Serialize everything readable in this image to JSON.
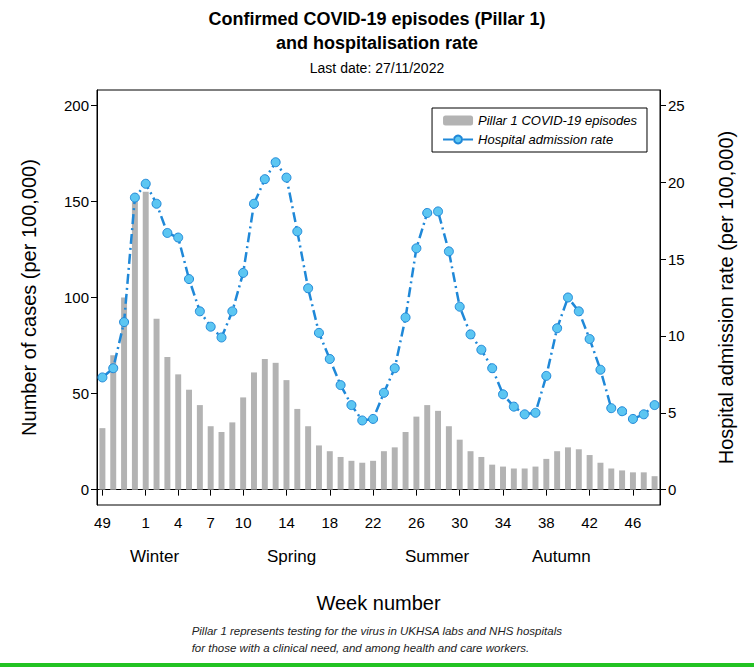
{
  "chart_data": {
    "type": "bar",
    "title": "Confirmed COVID-19 episodes (Pillar 1)\nand hospitalisation rate",
    "subtitle": "Last date: 27/11/2022",
    "xlabel": "Week number",
    "ylabel": "Number of cases (per 100,000)",
    "y2label": "Hospital admission rate (per 100,000)",
    "annotations": [
      "Winter",
      "Spring",
      "Summer",
      "Autumn"
    ],
    "footnote": "Pillar 1 represents testing for the virus in UKHSA labs and NHS hospitals\nfor those with a clinical need, and among health and care workers.",
    "categories": [
      "49",
      null,
      null,
      null,
      "1",
      null,
      null,
      "4",
      null,
      null,
      "7",
      null,
      null,
      "10",
      null,
      null,
      null,
      "14",
      null,
      null,
      null,
      "18",
      null,
      null,
      null,
      "22",
      null,
      null,
      null,
      "26",
      null,
      null,
      null,
      "30",
      null,
      null,
      null,
      "34",
      null,
      null,
      null,
      "38",
      null,
      null,
      null,
      "42",
      null,
      null,
      null,
      "46",
      null,
      null
    ],
    "series": [
      {
        "name": "Pillar 1 COVID-19 episodes",
        "type": "bar",
        "color": "#b3b3b3",
        "values": [
          32,
          70,
          100,
          150,
          155,
          89,
          69,
          60,
          52,
          44,
          33,
          30,
          35,
          48,
          61,
          68,
          66,
          57,
          42,
          33,
          23,
          20,
          17,
          15,
          14,
          15,
          20,
          22,
          30,
          38,
          44,
          41,
          33,
          26,
          20,
          17,
          13,
          12,
          11,
          11,
          12,
          16,
          20,
          22,
          21,
          18,
          14,
          11,
          10,
          9,
          9,
          7
        ]
      },
      {
        "name": "Hospital admission rate",
        "type": "line",
        "axis": "y2",
        "color": "#1f88d8",
        "marker": "circle",
        "line_style": "dashdot",
        "values": [
          7.3,
          7.9,
          10.9,
          19.0,
          19.9,
          18.6,
          16.7,
          16.4,
          13.7,
          11.6,
          10.6,
          9.9,
          11.6,
          14.1,
          18.6,
          20.2,
          21.3,
          20.3,
          16.8,
          13.1,
          10.2,
          8.5,
          6.8,
          5.5,
          4.5,
          4.6,
          6.3,
          7.9,
          11.2,
          15.7,
          18.0,
          18.1,
          15.5,
          11.9,
          10.1,
          9.1,
          7.9,
          6.2,
          5.4,
          4.9,
          5.0,
          7.4,
          10.5,
          12.5,
          11.6,
          9.8,
          7.8,
          5.3,
          5.1,
          4.6,
          4.9,
          5.5
        ]
      }
    ],
    "ylim": [
      -8,
      208
    ],
    "yticks": [
      0,
      50,
      100,
      150,
      200
    ],
    "y2lim": [
      -1,
      26
    ],
    "y2ticks": [
      0,
      5,
      10,
      15,
      20,
      25
    ],
    "grid": false,
    "legend": "upper right"
  }
}
